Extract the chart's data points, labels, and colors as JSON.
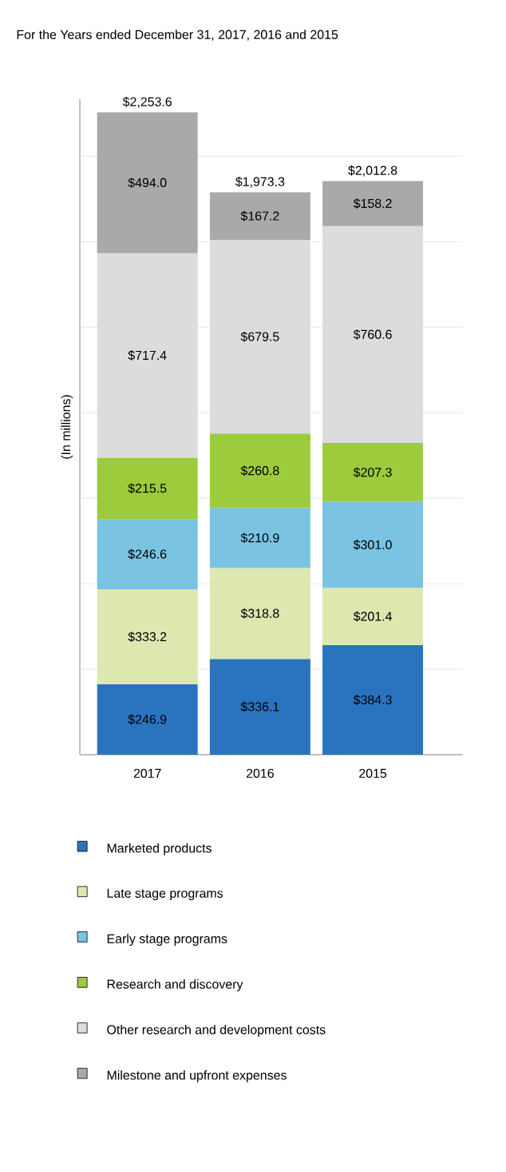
{
  "chart_data": {
    "type": "bar",
    "stacked": true,
    "title": "For the Years ended December 31, 2017, 2016 and 2015",
    "ylabel": "(In millions)",
    "categories": [
      "2017",
      "2016",
      "2015"
    ],
    "series": [
      {
        "name": "Marketed products",
        "color": "#2a74bf",
        "values": [
          246.9,
          336.1,
          384.3
        ],
        "value_labels": [
          "$246.9",
          "$336.1",
          "$384.3"
        ]
      },
      {
        "name": "Late stage programs",
        "color": "#dde8b0",
        "values": [
          333.2,
          318.8,
          201.4
        ],
        "value_labels": [
          "$333.2",
          "$318.8",
          "$201.4"
        ]
      },
      {
        "name": "Early stage programs",
        "color": "#7ac3e3",
        "values": [
          246.6,
          210.9,
          301.0
        ],
        "value_labels": [
          "$246.6",
          "$210.9",
          "$301.0"
        ]
      },
      {
        "name": "Research and discovery",
        "color": "#9ccb3c",
        "values": [
          215.5,
          260.8,
          207.3
        ],
        "value_labels": [
          "$215.5",
          "$260.8",
          "$207.3"
        ]
      },
      {
        "name": "Other research and development costs",
        "color": "#dcdcdc",
        "values": [
          717.4,
          679.5,
          760.6
        ],
        "value_labels": [
          "$717.4",
          "$679.5",
          "$760.6"
        ]
      },
      {
        "name": "Milestone and upfront expenses",
        "color": "#a9a9a9",
        "values": [
          494.0,
          167.2,
          158.2
        ],
        "value_labels": [
          "$494.0",
          "$167.2",
          "$158.2"
        ]
      }
    ],
    "totals": [
      "$2,253.6",
      "$1,973.3",
      "$2,012.8"
    ],
    "ylim": [
      0,
      2300
    ],
    "yticks": [
      {
        "value": 300,
        "label": null
      },
      {
        "value": 600,
        "label": null
      },
      {
        "value": 900,
        "label": null
      },
      {
        "value": 1200,
        "label": null
      },
      {
        "value": 1500,
        "label": null
      },
      {
        "value": 1800,
        "label": null
      },
      {
        "value": 2100,
        "label": null
      }
    ],
    "grid": "y",
    "tick_labels": "x",
    "legend": "bottom"
  }
}
